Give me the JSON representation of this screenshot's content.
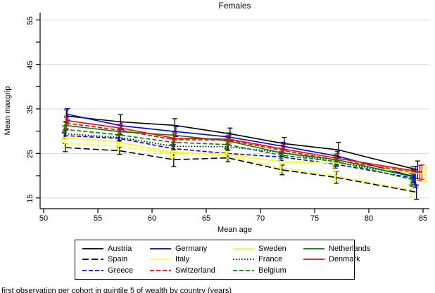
{
  "title": "Females",
  "caption_partial": "first observation per cohort in quintile 5 of wealth by country (years)",
  "chart_data": {
    "type": "line",
    "title": "Females",
    "xlabel": "Mean age",
    "ylabel": "Mean maxgrip",
    "xlim": [
      49.6,
      85.6
    ],
    "ylim": [
      12.5,
      56.5
    ],
    "x_ticks": [
      50,
      55,
      60,
      65,
      70,
      75,
      80,
      85
    ],
    "y_ticks": [
      15,
      20,
      25,
      30,
      35,
      40,
      45,
      50,
      55
    ],
    "y_tick_labels": [
      15,
      25,
      35,
      45,
      55
    ],
    "grid_values": [
      15,
      25,
      35,
      45,
      55
    ],
    "grid_color": "#d9d9d9",
    "legend_position": "bottom",
    "legend_columns": 4,
    "error_bars": true,
    "series": [
      {
        "name": "Austria",
        "color": "#000000",
        "style": "solid",
        "x": [
          52.1,
          57.1,
          62.1,
          67.2,
          72.2,
          77.2,
          84.5
        ],
        "y": [
          33.4,
          32.1,
          31.3,
          29.4,
          27.2,
          25.8,
          21.3
        ],
        "ci": [
          1.4,
          1.6,
          1.5,
          1.3,
          1.4,
          1.7,
          2.0
        ]
      },
      {
        "name": "Spain",
        "color": "#000000",
        "style": "longdash",
        "x": [
          52.0,
          57.0,
          62.0,
          67.0,
          72.0,
          77.0,
          84.4
        ],
        "y": [
          26.3,
          25.6,
          23.6,
          24.0,
          21.3,
          19.6,
          16.3
        ],
        "ci": [
          0.9,
          0.8,
          1.6,
          0.9,
          1.1,
          1.3,
          1.6
        ]
      },
      {
        "name": "Greece",
        "color": "#0000ff",
        "style": "dash",
        "x": [
          51.9,
          56.9,
          61.9,
          66.9,
          71.9,
          76.9,
          84.2
        ],
        "y": [
          29.0,
          28.4,
          26.1,
          25.0,
          24.2,
          22.6,
          19.4
        ],
        "ci": [
          0.8,
          0.7,
          0.9,
          1.0,
          0.8,
          0.9,
          1.3
        ]
      },
      {
        "name": "Germany",
        "color": "#0000ff",
        "style": "solid",
        "x": [
          52.2,
          57.2,
          62.2,
          67.1,
          72.1,
          77.1,
          84.3
        ],
        "y": [
          33.8,
          31.2,
          29.9,
          28.7,
          26.6,
          24.4,
          19.7
        ],
        "ci": [
          1.3,
          0.9,
          1.1,
          0.9,
          0.9,
          1.1,
          2.4
        ]
      },
      {
        "name": "Italy",
        "color": "#ffff00",
        "style": "dash",
        "x": [
          51.9,
          56.9,
          61.9,
          66.9,
          71.9,
          76.9,
          83.9
        ],
        "y": [
          27.3,
          26.6,
          25.0,
          24.7,
          21.8,
          20.0,
          16.8
        ],
        "ci": [
          0.9,
          0.8,
          0.9,
          0.8,
          0.9,
          1.0,
          1.5
        ]
      },
      {
        "name": "Switzerland",
        "color": "#ff0000",
        "style": "dash",
        "x": [
          52.1,
          57.1,
          62.0,
          67.0,
          72.0,
          77.0,
          84.7
        ],
        "y": [
          31.8,
          30.2,
          28.1,
          28.0,
          25.7,
          23.5,
          20.6
        ],
        "ci": [
          1.2,
          1.0,
          1.1,
          1.0,
          1.0,
          1.2,
          1.7
        ]
      },
      {
        "name": "Sweden",
        "color": "#ffff00",
        "style": "solid",
        "x": [
          51.8,
          56.8,
          61.8,
          66.8,
          71.8,
          76.8,
          85.2
        ],
        "y": [
          28.6,
          27.6,
          25.3,
          24.9,
          23.2,
          22.9,
          20.3
        ],
        "ci": [
          1.0,
          0.9,
          1.0,
          0.9,
          1.3,
          1.5,
          1.6
        ]
      },
      {
        "name": "France",
        "color": "#000000",
        "style": "dot",
        "x": [
          52.0,
          57.0,
          62.0,
          67.0,
          72.0,
          77.0,
          84.1
        ],
        "y": [
          29.4,
          28.6,
          26.6,
          26.5,
          25.2,
          23.1,
          19.9
        ],
        "ci": [
          0.8,
          0.7,
          0.8,
          0.8,
          0.8,
          1.0,
          1.4
        ]
      },
      {
        "name": "Belgium",
        "color": "#008000",
        "style": "dash",
        "x": [
          51.9,
          56.9,
          61.9,
          66.9,
          71.9,
          76.9,
          83.9
        ],
        "y": [
          30.4,
          29.2,
          27.5,
          27.0,
          24.6,
          23.2,
          19.2
        ],
        "ci": [
          0.8,
          0.7,
          0.8,
          0.8,
          0.8,
          1.0,
          1.3
        ]
      },
      {
        "name": "Netherlands",
        "color": "#008000",
        "style": "solid",
        "x": [
          52.0,
          57.0,
          62.0,
          67.0,
          72.0,
          77.0,
          84.0
        ],
        "y": [
          31.3,
          29.9,
          29.1,
          27.8,
          25.1,
          23.6,
          19.8
        ],
        "ci": [
          0.9,
          0.8,
          0.9,
          0.8,
          0.9,
          1.1,
          2.2
        ]
      },
      {
        "name": "Denmark",
        "color": "#ff0000",
        "style": "solid",
        "x": [
          52.1,
          57.1,
          62.1,
          67.1,
          72.1,
          77.1,
          84.9
        ],
        "y": [
          32.4,
          30.7,
          28.4,
          28.2,
          26.0,
          23.9,
          20.8
        ],
        "ci": [
          1.0,
          0.9,
          1.0,
          0.9,
          0.9,
          1.1,
          1.6
        ]
      }
    ]
  }
}
